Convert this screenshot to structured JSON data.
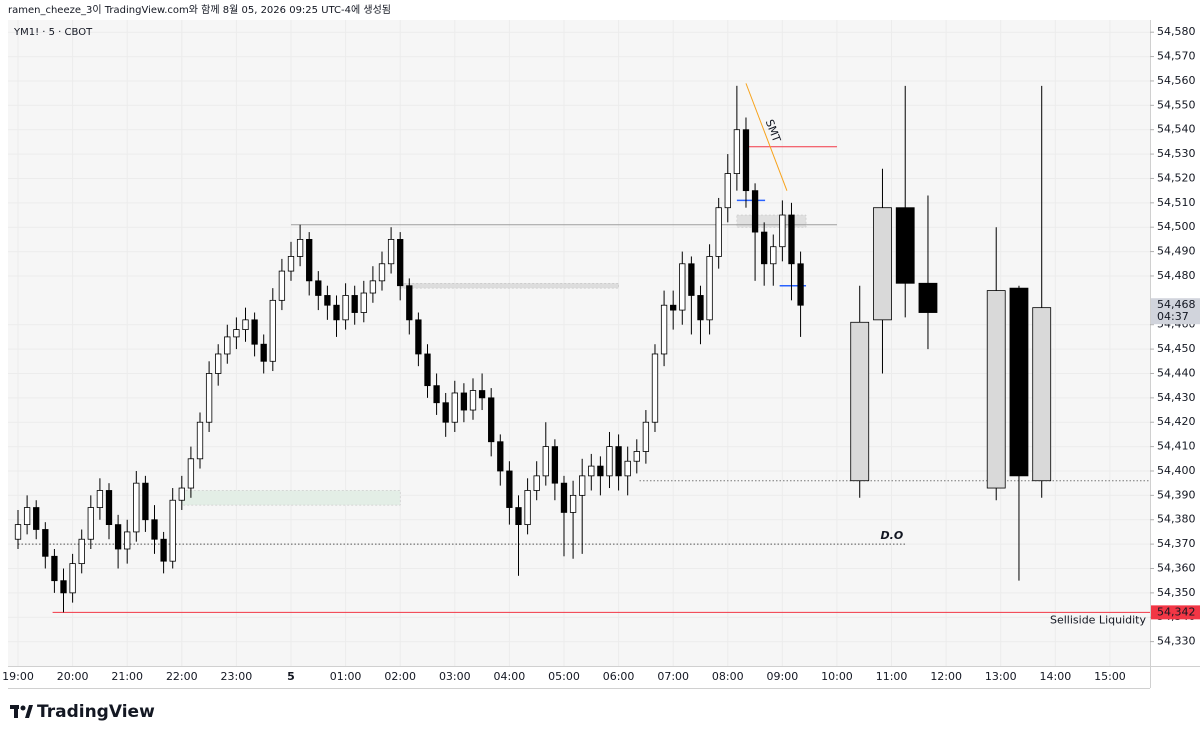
{
  "header": "ramen_cheeze_3이 TradingView.com와 함께 8월 05, 2026 09:25 UTC-4에 생성됨",
  "branding": "TradingView",
  "chart_data": {
    "type": "candlestick",
    "title": "YM1! · 5 · CBOT",
    "up_color": "#ffffff",
    "down_color": "#000000",
    "border_color": "#000000",
    "x": [
      "19:00",
      "19:10",
      "19:20",
      "19:30",
      "19:40",
      "19:50",
      "20:00",
      "20:10",
      "20:20",
      "20:30",
      "20:40",
      "20:50",
      "21:00",
      "21:10",
      "21:20",
      "21:30",
      "21:40",
      "21:50",
      "22:00",
      "22:10",
      "22:20",
      "22:30",
      "22:40",
      "22:50",
      "23:00",
      "23:10",
      "23:20",
      "23:30",
      "23:40",
      "23:50",
      "00:00",
      "00:10",
      "00:20",
      "00:30",
      "00:40",
      "00:50",
      "01:00",
      "01:10",
      "01:20",
      "01:30",
      "01:40",
      "01:50",
      "02:00",
      "02:10",
      "02:20",
      "02:30",
      "02:40",
      "02:50",
      "03:00",
      "03:10",
      "03:20",
      "03:30",
      "03:40",
      "03:50",
      "04:00",
      "04:10",
      "04:20",
      "04:30",
      "04:40",
      "04:50",
      "05:00",
      "05:10",
      "05:20",
      "05:30",
      "05:40",
      "05:50",
      "06:00",
      "06:10",
      "06:20",
      "06:30",
      "06:40",
      "06:50",
      "07:00",
      "07:10",
      "07:20",
      "07:30",
      "07:40",
      "07:50",
      "08:00",
      "08:10",
      "08:20",
      "08:30",
      "08:40",
      "08:50",
      "09:00",
      "09:10",
      "09:20"
    ],
    "open": [
      54372,
      54378,
      54385,
      54376,
      54365,
      54355,
      54350,
      54362,
      54372,
      54385,
      54392,
      54378,
      54368,
      54375,
      54395,
      54380,
      54372,
      54363,
      54388,
      54393,
      54405,
      54420,
      54440,
      54448,
      54455,
      54458,
      54462,
      54452,
      54445,
      54470,
      54482,
      54488,
      54495,
      54478,
      54472,
      54468,
      54462,
      54472,
      54465,
      54473,
      54478,
      54485,
      54495,
      54476,
      54462,
      54448,
      54435,
      54428,
      54420,
      54432,
      54425,
      54433,
      54430,
      54412,
      54400,
      54385,
      54378,
      54392,
      54398,
      54410,
      54395,
      54383,
      54390,
      54398,
      54402,
      54398,
      54410,
      54398,
      54404,
      54408,
      54420,
      54448,
      54468,
      54466,
      54485,
      54472,
      54462,
      54488,
      54508,
      54522,
      54540,
      54515,
      54498,
      54485,
      54492,
      54505,
      54485
    ],
    "high": [
      54384,
      54390,
      54388,
      54379,
      54368,
      54360,
      54366,
      54376,
      54390,
      54397,
      54395,
      54382,
      54380,
      54400,
      54398,
      54386,
      54375,
      54393,
      54398,
      54410,
      54424,
      54445,
      54452,
      54460,
      54463,
      54467,
      54465,
      54456,
      54475,
      54487,
      54494,
      54501,
      54498,
      54482,
      54476,
      54472,
      54477,
      54476,
      54478,
      54484,
      54490,
      54500,
      54498,
      54479,
      54465,
      54452,
      54440,
      54432,
      54437,
      54436,
      54438,
      54440,
      54434,
      54415,
      54404,
      54390,
      54397,
      54404,
      54420,
      54413,
      54398,
      54396,
      54405,
      54407,
      54406,
      54416,
      54415,
      54410,
      54413,
      54425,
      54452,
      54474,
      54474,
      54490,
      54488,
      54476,
      54493,
      54512,
      54530,
      54558,
      54545,
      54518,
      54502,
      54497,
      54511,
      54510,
      54490
    ],
    "low": [
      54368,
      54374,
      54372,
      54360,
      54350,
      54342,
      54346,
      54358,
      54368,
      54380,
      54372,
      54360,
      54362,
      54371,
      54375,
      54366,
      54358,
      54360,
      54384,
      54389,
      54401,
      54416,
      54435,
      54444,
      54450,
      54453,
      54447,
      54440,
      54441,
      54466,
      54478,
      54484,
      54472,
      54466,
      54462,
      54455,
      54458,
      54460,
      54461,
      54469,
      54474,
      54481,
      54470,
      54456,
      54443,
      54430,
      54423,
      54414,
      54416,
      54420,
      54421,
      54425,
      54406,
      54394,
      54378,
      54357,
      54374,
      54388,
      54394,
      54388,
      54365,
      54364,
      54366,
      54392,
      54390,
      54393,
      54392,
      54390,
      54399,
      54403,
      54416,
      54443,
      54458,
      54460,
      54456,
      54452,
      54456,
      54483,
      54502,
      54515,
      54508,
      54478,
      54476,
      54476,
      54486,
      54470,
      54455
    ],
    "close": [
      54378,
      54385,
      54376,
      54365,
      54355,
      54350,
      54362,
      54372,
      54385,
      54392,
      54378,
      54368,
      54375,
      54395,
      54380,
      54372,
      54363,
      54388,
      54393,
      54405,
      54420,
      54440,
      54448,
      54455,
      54458,
      54462,
      54452,
      54445,
      54470,
      54482,
      54488,
      54495,
      54478,
      54472,
      54468,
      54462,
      54472,
      54465,
      54473,
      54478,
      54485,
      54495,
      54476,
      54462,
      54448,
      54435,
      54428,
      54420,
      54432,
      54425,
      54433,
      54430,
      54412,
      54400,
      54385,
      54378,
      54392,
      54398,
      54410,
      54395,
      54383,
      54390,
      54398,
      54402,
      54398,
      54410,
      54398,
      54404,
      54408,
      54420,
      54448,
      54468,
      54466,
      54485,
      54472,
      54462,
      54488,
      54508,
      54522,
      54540,
      54515,
      54498,
      54485,
      54492,
      54505,
      54485,
      54468
    ],
    "projection": {
      "up_color": "#d9d9d9",
      "down_color": "#000000",
      "x": [
        "10:25",
        "10:50",
        "11:15",
        "11:40",
        "12:55",
        "13:20",
        "13:45"
      ],
      "open": [
        54396,
        54462,
        54508,
        54477,
        54393,
        54475,
        54396
      ],
      "high": [
        54476,
        54524,
        54558,
        54513,
        54500,
        54476,
        54558
      ],
      "low": [
        54389,
        54440,
        54463,
        54450,
        54388,
        54355,
        54389
      ],
      "close": [
        54461,
        54508,
        54477,
        54465,
        54474,
        54398,
        54467
      ]
    },
    "xlim": [
      "18:49",
      "15:44"
    ],
    "ylim": [
      54320,
      54585
    ],
    "xticks": [
      "19:00",
      "20:00",
      "21:00",
      "22:00",
      "23:00",
      {
        "value": "00:00",
        "label": "5"
      },
      "01:00",
      "02:00",
      "03:00",
      "04:00",
      "05:00",
      "06:00",
      "07:00",
      "08:00",
      "09:00",
      "10:00",
      "11:00",
      "12:00",
      "13:00",
      "14:00",
      "15:00"
    ],
    "yticks": [
      {
        "value": 54330,
        "label": "54,330"
      },
      {
        "value": 54340,
        "label": "54,340"
      },
      {
        "value": 54350,
        "label": "54,350"
      },
      {
        "value": 54360,
        "label": "54,360"
      },
      {
        "value": 54370,
        "label": "54,370"
      },
      {
        "value": 54380,
        "label": "54,380"
      },
      {
        "value": 54390,
        "label": "54,390"
      },
      {
        "value": 54400,
        "label": "54,400"
      },
      {
        "value": 54410,
        "label": "54,410"
      },
      {
        "value": 54420,
        "label": "54,420"
      },
      {
        "value": 54430,
        "label": "54,430"
      },
      {
        "value": 54440,
        "label": "54,440"
      },
      {
        "value": 54450,
        "label": "54,450"
      },
      {
        "value": 54460,
        "label": "54,460"
      },
      {
        "value": 54480,
        "label": "54,480"
      },
      {
        "value": 54490,
        "label": "54,490"
      },
      {
        "value": 54500,
        "label": "54,500"
      },
      {
        "value": 54510,
        "label": "54,510"
      },
      {
        "value": 54520,
        "label": "54,520"
      },
      {
        "value": 54530,
        "label": "54,530"
      },
      {
        "value": 54540,
        "label": "54,540"
      },
      {
        "value": 54550,
        "label": "54,550"
      },
      {
        "value": 54560,
        "label": "54,560"
      },
      {
        "value": 54570,
        "label": "54,570"
      },
      {
        "value": 54580,
        "label": "54,580"
      }
    ],
    "grid": true,
    "levels": [
      {
        "price": 54370,
        "from": "19:00",
        "to": "11:15",
        "label": "D.O",
        "color": "#555555",
        "dotted": true
      },
      {
        "price": 54342,
        "from": "19:38",
        "to": "15:44",
        "label": "Selliside Liquidity",
        "color": "#f23645",
        "dotted": false
      },
      {
        "price": 54501,
        "from": "00:00",
        "to": "10:00",
        "color": "#9e9e9e",
        "dotted": false
      },
      {
        "price": 54533,
        "from": "08:22",
        "to": "10:00",
        "color": "#f23645",
        "dotted": false
      },
      {
        "price": 54396,
        "from": "06:23",
        "to": "15:44",
        "color": "#777777",
        "dotted": true
      },
      {
        "price": 54511,
        "from": "08:10",
        "to": "08:41",
        "color": "#2962ff",
        "dotted": false
      },
      {
        "price": 54476,
        "from": "08:57",
        "to": "09:26",
        "color": "#2962ff",
        "dotted": false
      }
    ],
    "zones": [
      {
        "low": 54386,
        "high": 54392,
        "from": "22:00",
        "to": "02:00",
        "color": "#e3eee6"
      },
      {
        "low": 54475,
        "high": 54477,
        "from": "02:00",
        "to": "06:00",
        "color": "#dddddd"
      },
      {
        "low": 54500,
        "high": 54505,
        "from": "08:10",
        "to": "09:26",
        "color": "#e0e0e0"
      }
    ],
    "trendline": {
      "from_x": "08:20",
      "from_y": 54559,
      "to_x": "09:05",
      "to_y": 54515,
      "label": "SMT",
      "color": "#f7a21b"
    },
    "price_labels": [
      {
        "value": 54342,
        "label": "54,342",
        "color": "#f23645",
        "text_color": "#ffffff"
      },
      {
        "value": 54468,
        "label": "54,468",
        "countdown": "04:37",
        "color": "#d1d4dc",
        "text_color": "#131722"
      }
    ]
  }
}
